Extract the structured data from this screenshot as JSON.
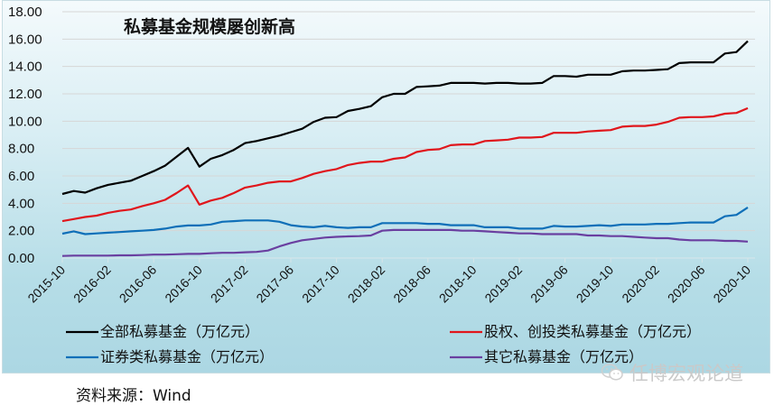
{
  "chart_data": {
    "type": "line",
    "title": "私募基金规模屡创新高",
    "xlabel": "",
    "ylabel": "",
    "ylim": [
      0,
      18
    ],
    "yticks": [
      0,
      2,
      4,
      6,
      8,
      10,
      12,
      14,
      16,
      18
    ],
    "ytick_labels": [
      "0.00",
      "2.00",
      "4.00",
      "6.00",
      "8.00",
      "10.00",
      "12.00",
      "14.00",
      "16.00",
      "18.00"
    ],
    "grid": true,
    "legend_position": "bottom",
    "x": [
      "2015-10",
      "2015-11",
      "2015-12",
      "2016-01",
      "2016-02",
      "2016-03",
      "2016-04",
      "2016-05",
      "2016-06",
      "2016-07",
      "2016-08",
      "2016-09",
      "2016-10",
      "2016-11",
      "2016-12",
      "2017-01",
      "2017-02",
      "2017-03",
      "2017-04",
      "2017-05",
      "2017-06",
      "2017-07",
      "2017-08",
      "2017-09",
      "2017-10",
      "2017-11",
      "2017-12",
      "2018-01",
      "2018-02",
      "2018-03",
      "2018-04",
      "2018-05",
      "2018-06",
      "2018-07",
      "2018-08",
      "2018-09",
      "2018-10",
      "2018-11",
      "2018-12",
      "2019-01",
      "2019-02",
      "2019-03",
      "2019-04",
      "2019-05",
      "2019-06",
      "2019-07",
      "2019-08",
      "2019-09",
      "2019-10",
      "2019-11",
      "2019-12",
      "2020-01",
      "2020-02",
      "2020-03",
      "2020-04",
      "2020-05",
      "2020-06",
      "2020-07",
      "2020-08",
      "2020-09",
      "2020-10"
    ],
    "xtick_labels": [
      "2015-10",
      "2016-02",
      "2016-06",
      "2016-10",
      "2017-02",
      "2017-06",
      "2017-10",
      "2018-02",
      "2018-06",
      "2018-10",
      "2019-02",
      "2019-06",
      "2019-10",
      "2020-02",
      "2020-06",
      "2020-10"
    ],
    "series": [
      {
        "name": "全部私募基金（万亿元）",
        "color": "#000000",
        "values": [
          4.68,
          4.9,
          4.78,
          5.1,
          5.35,
          5.5,
          5.65,
          6.0,
          6.35,
          6.75,
          7.4,
          8.05,
          6.68,
          7.25,
          7.52,
          7.9,
          8.4,
          8.55,
          8.75,
          8.95,
          9.2,
          9.45,
          9.95,
          10.25,
          10.3,
          10.75,
          10.9,
          11.1,
          11.75,
          12.0,
          12.0,
          12.5,
          12.55,
          12.6,
          12.8,
          12.8,
          12.8,
          12.75,
          12.8,
          12.8,
          12.75,
          12.75,
          12.8,
          13.3,
          13.3,
          13.25,
          13.4,
          13.4,
          13.4,
          13.65,
          13.7,
          13.7,
          13.75,
          13.8,
          14.25,
          14.3,
          14.3,
          14.3,
          14.95,
          15.05,
          15.85
        ]
      },
      {
        "name": "股权、创投类私募基金（万亿元）",
        "color": "#e0161c",
        "values": [
          2.7,
          2.85,
          3.0,
          3.1,
          3.3,
          3.45,
          3.55,
          3.8,
          4.0,
          4.25,
          4.75,
          5.3,
          3.9,
          4.2,
          4.4,
          4.75,
          5.15,
          5.3,
          5.5,
          5.6,
          5.6,
          5.85,
          6.15,
          6.35,
          6.5,
          6.8,
          6.95,
          7.05,
          7.05,
          7.25,
          7.35,
          7.75,
          7.9,
          7.95,
          8.25,
          8.3,
          8.3,
          8.55,
          8.6,
          8.65,
          8.8,
          8.8,
          8.85,
          9.15,
          9.15,
          9.15,
          9.25,
          9.3,
          9.35,
          9.6,
          9.65,
          9.65,
          9.75,
          9.95,
          10.25,
          10.3,
          10.3,
          10.35,
          10.55,
          10.6,
          10.95
        ]
      },
      {
        "name": "证券类私募基金（万亿元）",
        "color": "#0f6fb8",
        "values": [
          1.78,
          1.95,
          1.75,
          1.8,
          1.85,
          1.9,
          1.95,
          2.0,
          2.05,
          2.15,
          2.3,
          2.38,
          2.38,
          2.45,
          2.65,
          2.7,
          2.75,
          2.75,
          2.75,
          2.65,
          2.4,
          2.3,
          2.25,
          2.35,
          2.25,
          2.2,
          2.25,
          2.25,
          2.55,
          2.55,
          2.55,
          2.55,
          2.5,
          2.5,
          2.4,
          2.4,
          2.4,
          2.25,
          2.25,
          2.25,
          2.15,
          2.15,
          2.15,
          2.35,
          2.3,
          2.3,
          2.35,
          2.4,
          2.35,
          2.45,
          2.45,
          2.45,
          2.5,
          2.5,
          2.55,
          2.6,
          2.6,
          2.6,
          3.05,
          3.15,
          3.7
        ]
      },
      {
        "name": "其它私募基金（万亿元）",
        "color": "#6a3fa0",
        "values": [
          0.15,
          0.18,
          0.18,
          0.18,
          0.18,
          0.2,
          0.2,
          0.22,
          0.25,
          0.25,
          0.28,
          0.3,
          0.3,
          0.35,
          0.38,
          0.38,
          0.42,
          0.45,
          0.55,
          0.85,
          1.1,
          1.3,
          1.4,
          1.5,
          1.55,
          1.58,
          1.6,
          1.65,
          2.0,
          2.05,
          2.05,
          2.05,
          2.05,
          2.05,
          2.05,
          2.0,
          2.0,
          1.95,
          1.9,
          1.85,
          1.8,
          1.8,
          1.75,
          1.75,
          1.75,
          1.75,
          1.65,
          1.65,
          1.6,
          1.6,
          1.55,
          1.5,
          1.45,
          1.45,
          1.35,
          1.3,
          1.3,
          1.3,
          1.25,
          1.25,
          1.2
        ]
      }
    ]
  },
  "footer": {
    "source": "资料来源：Wind",
    "watermark": "任博宏观论道"
  }
}
